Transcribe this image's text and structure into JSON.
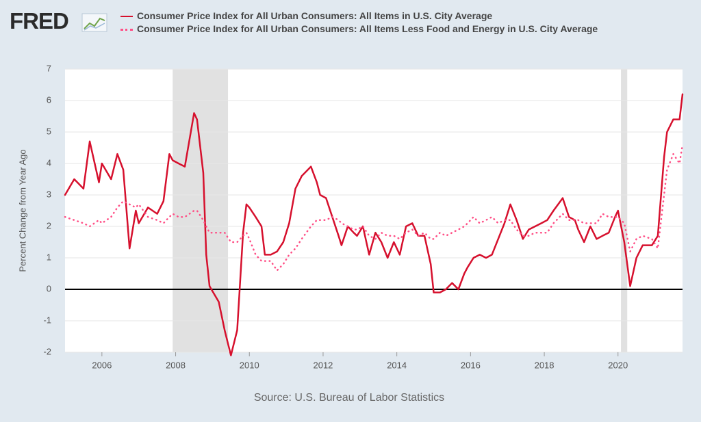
{
  "logo": "FRED",
  "chart_data": {
    "type": "line",
    "y_label": "Percent Change from Year Ago",
    "source": "Source: U.S. Bureau of Labor Statistics",
    "xlim": [
      2005,
      2021.75
    ],
    "xticks": [
      2006,
      2008,
      2010,
      2012,
      2014,
      2016,
      2018,
      2020
    ],
    "ylim": [
      -2,
      7
    ],
    "yticks": [
      -2,
      -1,
      0,
      1,
      2,
      3,
      4,
      5,
      6,
      7
    ],
    "grid": true,
    "recessions": [
      [
        2007.92,
        2009.42
      ],
      [
        2020.08,
        2020.25
      ]
    ],
    "x": [
      2005.0,
      2005.25,
      2005.5,
      2005.67,
      2005.92,
      2006.0,
      2006.25,
      2006.42,
      2006.58,
      2006.75,
      2006.92,
      2007.0,
      2007.25,
      2007.5,
      2007.67,
      2007.83,
      2007.92,
      2008.08,
      2008.25,
      2008.5,
      2008.58,
      2008.75,
      2008.83,
      2008.92,
      2009.17,
      2009.33,
      2009.5,
      2009.67,
      2009.83,
      2009.92,
      2010.0,
      2010.17,
      2010.33,
      2010.42,
      2010.58,
      2010.75,
      2010.92,
      2011.08,
      2011.25,
      2011.42,
      2011.67,
      2011.83,
      2011.92,
      2012.08,
      2012.25,
      2012.42,
      2012.5,
      2012.67,
      2012.83,
      2012.92,
      2013.08,
      2013.25,
      2013.42,
      2013.58,
      2013.75,
      2013.92,
      2014.08,
      2014.25,
      2014.42,
      2014.58,
      2014.75,
      2014.92,
      2015.0,
      2015.17,
      2015.33,
      2015.5,
      2015.67,
      2015.83,
      2015.92,
      2016.08,
      2016.25,
      2016.42,
      2016.58,
      2016.75,
      2016.92,
      2017.08,
      2017.25,
      2017.42,
      2017.58,
      2017.75,
      2017.92,
      2018.08,
      2018.25,
      2018.5,
      2018.67,
      2018.83,
      2018.92,
      2019.08,
      2019.25,
      2019.42,
      2019.58,
      2019.75,
      2019.92,
      2020.0,
      2020.17,
      2020.33,
      2020.5,
      2020.67,
      2020.92,
      2021.08,
      2021.25,
      2021.33,
      2021.5,
      2021.67,
      2021.75
    ],
    "series": [
      {
        "name": "Consumer Price Index for All Urban Consumers: All Items in U.S. City Average",
        "color": "#d6102d",
        "style": "solid",
        "values": [
          3.0,
          3.5,
          3.2,
          4.7,
          3.4,
          4.0,
          3.5,
          4.3,
          3.8,
          1.3,
          2.5,
          2.1,
          2.6,
          2.4,
          2.8,
          4.3,
          4.1,
          4.0,
          3.9,
          5.6,
          5.4,
          3.7,
          1.1,
          0.1,
          -0.4,
          -1.3,
          -2.1,
          -1.3,
          1.8,
          2.7,
          2.6,
          2.3,
          2.0,
          1.1,
          1.1,
          1.2,
          1.5,
          2.1,
          3.2,
          3.6,
          3.9,
          3.4,
          3.0,
          2.9,
          2.3,
          1.7,
          1.4,
          2.0,
          1.8,
          1.7,
          2.0,
          1.1,
          1.8,
          1.5,
          1.0,
          1.5,
          1.1,
          2.0,
          2.1,
          1.7,
          1.7,
          0.8,
          -0.1,
          -0.1,
          0.0,
          0.2,
          0.0,
          0.5,
          0.7,
          1.0,
          1.1,
          1.0,
          1.1,
          1.6,
          2.1,
          2.7,
          2.2,
          1.6,
          1.9,
          2.0,
          2.1,
          2.2,
          2.5,
          2.9,
          2.3,
          2.2,
          1.9,
          1.5,
          2.0,
          1.6,
          1.7,
          1.8,
          2.3,
          2.5,
          1.5,
          0.1,
          1.0,
          1.4,
          1.4,
          1.7,
          4.2,
          5.0,
          5.4,
          5.4,
          6.2
        ]
      },
      {
        "name": "Consumer Price Index for All Urban Consumers: All Items Less Food and Energy in U.S. City Average",
        "color": "#ff4f86",
        "style": "dotted",
        "values": [
          2.3,
          2.2,
          2.1,
          2.0,
          2.2,
          2.1,
          2.3,
          2.6,
          2.8,
          2.7,
          2.6,
          2.7,
          2.3,
          2.2,
          2.1,
          2.3,
          2.4,
          2.3,
          2.3,
          2.5,
          2.5,
          2.2,
          2.0,
          1.8,
          1.8,
          1.8,
          1.5,
          1.5,
          1.7,
          1.8,
          1.6,
          1.1,
          0.9,
          0.9,
          0.9,
          0.6,
          0.8,
          1.1,
          1.3,
          1.6,
          2.0,
          2.2,
          2.2,
          2.2,
          2.3,
          2.2,
          2.1,
          2.0,
          1.9,
          1.9,
          2.0,
          1.7,
          1.6,
          1.8,
          1.7,
          1.7,
          1.6,
          1.8,
          1.9,
          1.7,
          1.8,
          1.6,
          1.6,
          1.8,
          1.7,
          1.8,
          1.9,
          2.0,
          2.1,
          2.3,
          2.1,
          2.2,
          2.3,
          2.1,
          2.2,
          2.2,
          1.9,
          1.7,
          1.7,
          1.8,
          1.8,
          1.8,
          2.1,
          2.4,
          2.2,
          2.2,
          2.2,
          2.1,
          2.1,
          2.1,
          2.4,
          2.3,
          2.3,
          2.3,
          2.1,
          1.2,
          1.6,
          1.7,
          1.6,
          1.3,
          3.0,
          3.8,
          4.3,
          4.0,
          4.6
        ]
      }
    ]
  }
}
